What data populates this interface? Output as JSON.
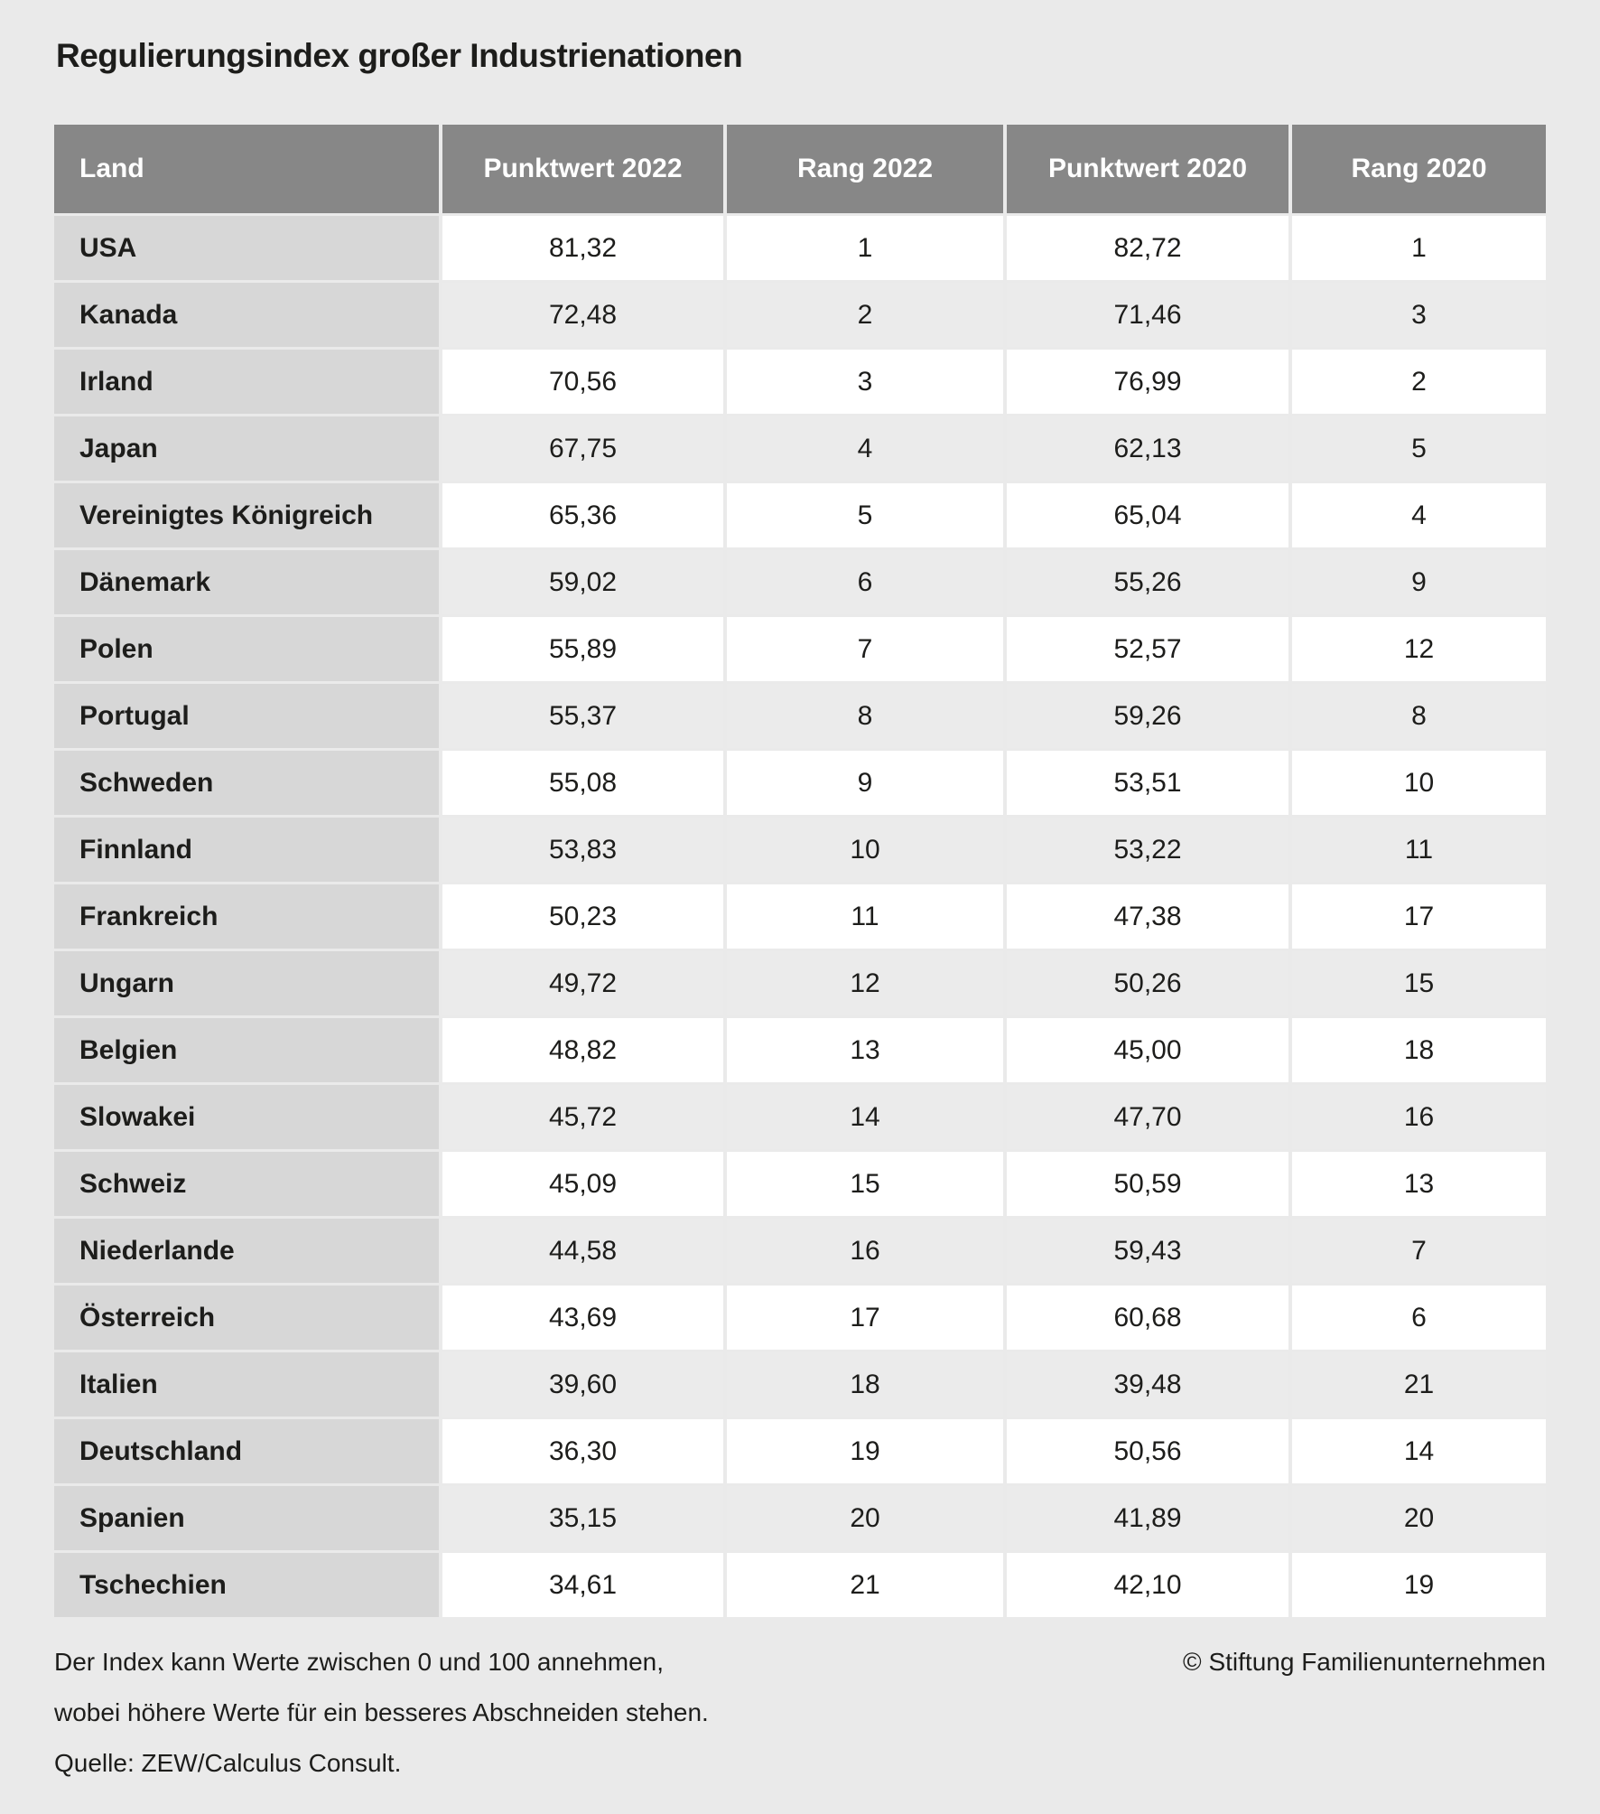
{
  "title": "Regulierungsindex großer Industrienationen",
  "table": {
    "columns": [
      "Land",
      "Punktwert 2022",
      "Rang 2022",
      "Punktwert 2020",
      "Rang 2020"
    ],
    "rows": [
      {
        "land": "USA",
        "punktwert_2022": "81,32",
        "rang_2022": "1",
        "punktwert_2020": "82,72",
        "rang_2020": "1"
      },
      {
        "land": "Kanada",
        "punktwert_2022": "72,48",
        "rang_2022": "2",
        "punktwert_2020": "71,46",
        "rang_2020": "3"
      },
      {
        "land": "Irland",
        "punktwert_2022": "70,56",
        "rang_2022": "3",
        "punktwert_2020": "76,99",
        "rang_2020": "2"
      },
      {
        "land": "Japan",
        "punktwert_2022": "67,75",
        "rang_2022": "4",
        "punktwert_2020": "62,13",
        "rang_2020": "5"
      },
      {
        "land": "Vereinigtes Königreich",
        "punktwert_2022": "65,36",
        "rang_2022": "5",
        "punktwert_2020": "65,04",
        "rang_2020": "4"
      },
      {
        "land": "Dänemark",
        "punktwert_2022": "59,02",
        "rang_2022": "6",
        "punktwert_2020": "55,26",
        "rang_2020": "9"
      },
      {
        "land": "Polen",
        "punktwert_2022": "55,89",
        "rang_2022": "7",
        "punktwert_2020": "52,57",
        "rang_2020": "12"
      },
      {
        "land": "Portugal",
        "punktwert_2022": "55,37",
        "rang_2022": "8",
        "punktwert_2020": "59,26",
        "rang_2020": "8"
      },
      {
        "land": "Schweden",
        "punktwert_2022": "55,08",
        "rang_2022": "9",
        "punktwert_2020": "53,51",
        "rang_2020": "10"
      },
      {
        "land": "Finnland",
        "punktwert_2022": "53,83",
        "rang_2022": "10",
        "punktwert_2020": "53,22",
        "rang_2020": "11"
      },
      {
        "land": "Frankreich",
        "punktwert_2022": "50,23",
        "rang_2022": "11",
        "punktwert_2020": "47,38",
        "rang_2020": "17"
      },
      {
        "land": "Ungarn",
        "punktwert_2022": "49,72",
        "rang_2022": "12",
        "punktwert_2020": "50,26",
        "rang_2020": "15"
      },
      {
        "land": "Belgien",
        "punktwert_2022": "48,82",
        "rang_2022": "13",
        "punktwert_2020": "45,00",
        "rang_2020": "18"
      },
      {
        "land": "Slowakei",
        "punktwert_2022": "45,72",
        "rang_2022": "14",
        "punktwert_2020": "47,70",
        "rang_2020": "16"
      },
      {
        "land": "Schweiz",
        "punktwert_2022": "45,09",
        "rang_2022": "15",
        "punktwert_2020": "50,59",
        "rang_2020": "13"
      },
      {
        "land": "Niederlande",
        "punktwert_2022": "44,58",
        "rang_2022": "16",
        "punktwert_2020": "59,43",
        "rang_2020": "7"
      },
      {
        "land": "Österreich",
        "punktwert_2022": "43,69",
        "rang_2022": "17",
        "punktwert_2020": "60,68",
        "rang_2020": "6"
      },
      {
        "land": "Italien",
        "punktwert_2022": "39,60",
        "rang_2022": "18",
        "punktwert_2020": "39,48",
        "rang_2020": "21"
      },
      {
        "land": "Deutschland",
        "punktwert_2022": "36,30",
        "rang_2022": "19",
        "punktwert_2020": "50,56",
        "rang_2020": "14"
      },
      {
        "land": "Spanien",
        "punktwert_2022": "35,15",
        "rang_2022": "20",
        "punktwert_2020": "41,89",
        "rang_2020": "20"
      },
      {
        "land": "Tschechien",
        "punktwert_2022": "34,61",
        "rang_2022": "21",
        "punktwert_2020": "42,10",
        "rang_2020": "19"
      }
    ]
  },
  "footnote": {
    "lines": [
      "Der Index kann Werte zwischen 0 und 100 annehmen,",
      "wobei höhere Werte für ein besseres Abschneiden stehen.",
      "Quelle: ZEW/Calculus Consult."
    ],
    "copyright": "© Stiftung Familienunternehmen"
  },
  "colors": {
    "page_bg": "#eaeaea",
    "header_bg": "#878787",
    "header_text": "#ffffff",
    "land_cell_bg": "#d7d7d7",
    "row_white": "#ffffff",
    "row_gray": "#ebebeb",
    "text": "#1d1d1b"
  },
  "chart_data": {
    "type": "table",
    "title": "Regulierungsindex großer Industrienationen",
    "columns": [
      "Land",
      "Punktwert 2022",
      "Rang 2022",
      "Punktwert 2020",
      "Rang 2020"
    ],
    "value_range": [
      0,
      100
    ],
    "rows": [
      [
        "USA",
        81.32,
        1,
        82.72,
        1
      ],
      [
        "Kanada",
        72.48,
        2,
        71.46,
        3
      ],
      [
        "Irland",
        70.56,
        3,
        76.99,
        2
      ],
      [
        "Japan",
        67.75,
        4,
        62.13,
        5
      ],
      [
        "Vereinigtes Königreich",
        65.36,
        5,
        65.04,
        4
      ],
      [
        "Dänemark",
        59.02,
        6,
        55.26,
        9
      ],
      [
        "Polen",
        55.89,
        7,
        52.57,
        12
      ],
      [
        "Portugal",
        55.37,
        8,
        59.26,
        8
      ],
      [
        "Schweden",
        55.08,
        9,
        53.51,
        10
      ],
      [
        "Finnland",
        53.83,
        10,
        53.22,
        11
      ],
      [
        "Frankreich",
        50.23,
        11,
        47.38,
        17
      ],
      [
        "Ungarn",
        49.72,
        12,
        50.26,
        15
      ],
      [
        "Belgien",
        48.82,
        13,
        45.0,
        18
      ],
      [
        "Slowakei",
        45.72,
        14,
        47.7,
        16
      ],
      [
        "Schweiz",
        45.09,
        15,
        50.59,
        13
      ],
      [
        "Niederlande",
        44.58,
        16,
        59.43,
        7
      ],
      [
        "Österreich",
        43.69,
        17,
        60.68,
        6
      ],
      [
        "Italien",
        39.6,
        18,
        39.48,
        21
      ],
      [
        "Deutschland",
        36.3,
        19,
        50.56,
        14
      ],
      [
        "Spanien",
        35.15,
        20,
        41.89,
        20
      ],
      [
        "Tschechien",
        34.61,
        21,
        42.1,
        19
      ]
    ],
    "notes": "Der Index kann Werte zwischen 0 und 100 annehmen, wobei höhere Werte für ein besseres Abschneiden stehen. Quelle: ZEW/Calculus Consult."
  }
}
